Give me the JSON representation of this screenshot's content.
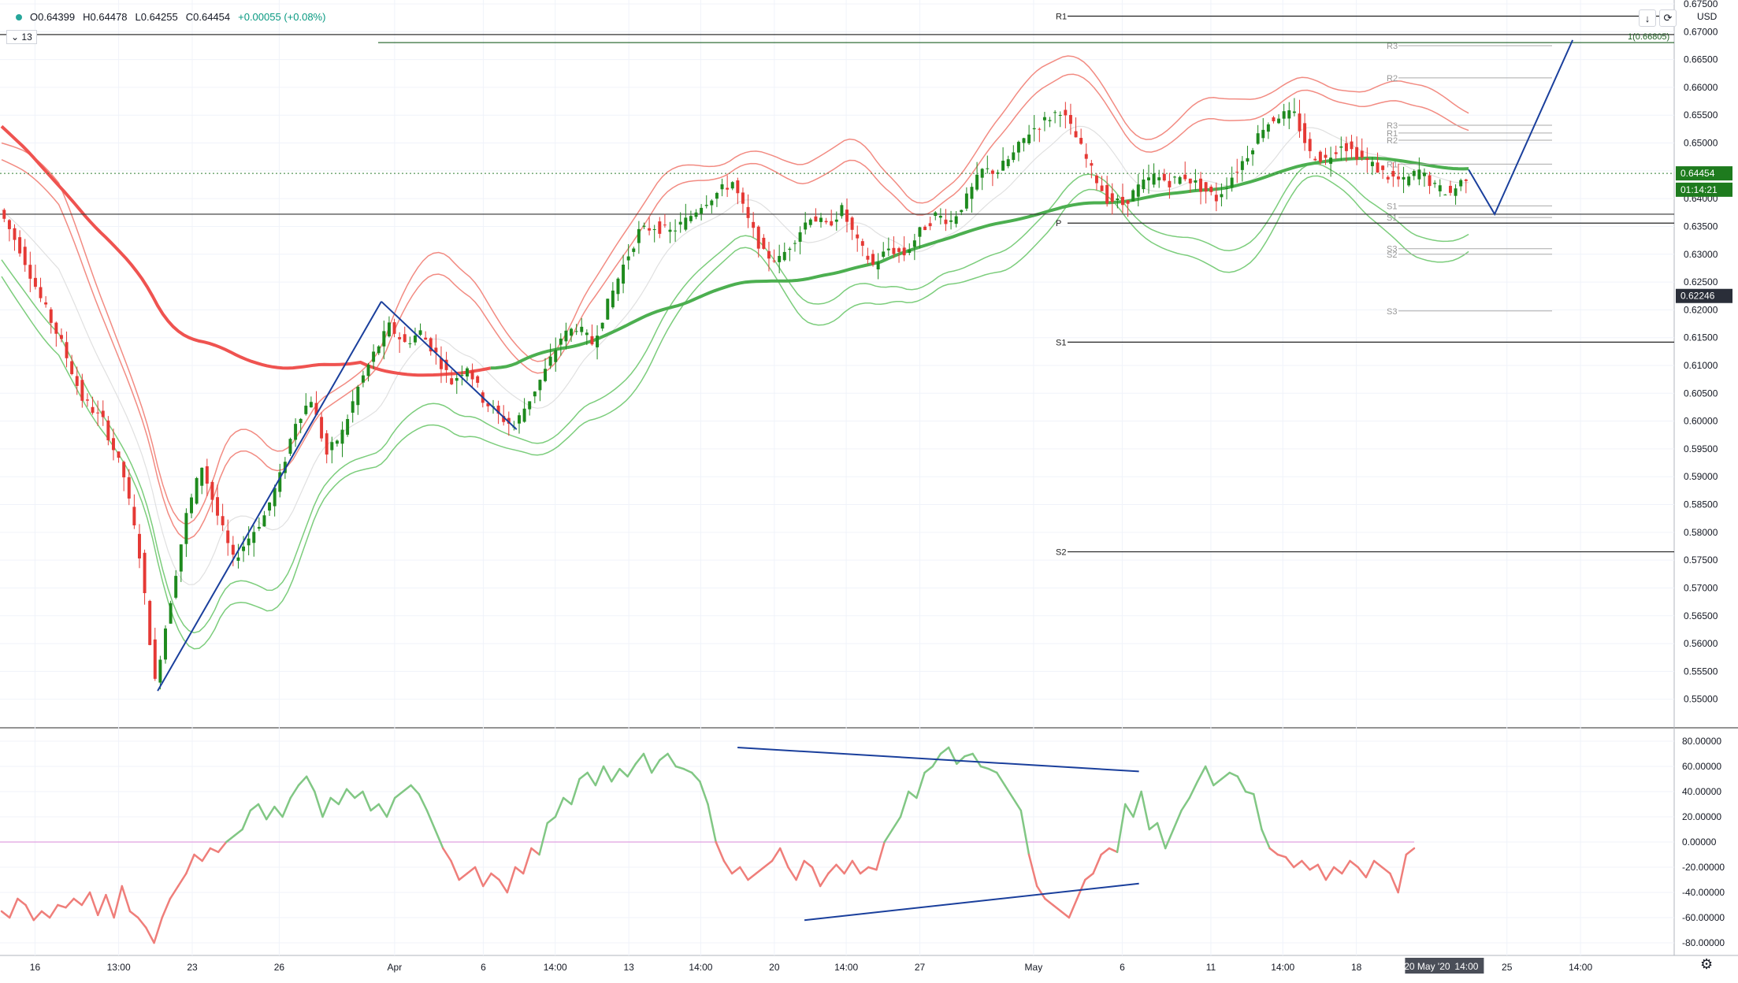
{
  "header": {
    "open": "O0.64399",
    "high": "H0.64478",
    "low": "L0.64255",
    "close": "C0.64454",
    "change": "+0.00055 (+0.08%)",
    "collapse_label": "13",
    "currency": "USD"
  },
  "chart_data": [
    {
      "type": "candlestick",
      "y_range": [
        0.545,
        0.675
      ],
      "y_ticks": [
        "0.67500",
        "0.67000",
        "0.66500",
        "0.66000",
        "0.65500",
        "0.65000",
        "0.64500",
        "0.64000",
        "0.63500",
        "0.63000",
        "0.62500",
        "0.62000",
        "0.61500",
        "0.61000",
        "0.60500",
        "0.60000",
        "0.59500",
        "0.59000",
        "0.58500",
        "0.58000",
        "0.57500",
        "0.57000",
        "0.56500",
        "0.56000",
        "0.55500",
        "0.55000"
      ],
      "x_ticks": [
        "16",
        "13:00",
        "23",
        "26",
        "Apr",
        "6",
        "14:00",
        "13",
        "14:00",
        "20",
        "14:00",
        "27",
        "May",
        "6",
        "11",
        "14:00",
        "18",
        "25",
        "14:00"
      ],
      "x_highlight_label": "20 May '20",
      "x_highlight_time": "14:00",
      "last_price": "0.64454",
      "countdown": "01:14:21",
      "crosshair_price": "0.62246",
      "fib_label": "1(0.66805)",
      "pivot_levels_weekly": [
        {
          "label": "R1",
          "value": 0.6728
        },
        {
          "label": "P",
          "value": 0.6356
        },
        {
          "label": "S1",
          "value": 0.6142
        },
        {
          "label": "S2",
          "value": 0.5765
        }
      ],
      "pivot_levels_daily": [
        {
          "label": "R3",
          "value": 0.6675
        },
        {
          "label": "R2",
          "value": 0.6617
        },
        {
          "label": "R3",
          "value": 0.6532
        },
        {
          "label": "R1",
          "value": 0.6518
        },
        {
          "label": "R2",
          "value": 0.6505
        },
        {
          "label": "R1",
          "value": 0.6462
        },
        {
          "label": "S1",
          "value": 0.6387
        },
        {
          "label": "S1",
          "value": 0.6366
        },
        {
          "label": "S3",
          "value": 0.631
        },
        {
          "label": "S2",
          "value": 0.63
        },
        {
          "label": "S3",
          "value": 0.6198
        }
      ],
      "horizontal_lines": [
        0.66805,
        0.6695,
        0.6372
      ],
      "price_path": [
        {
          "t": 0,
          "v": 0.638
        },
        {
          "t": 4,
          "v": 0.631
        },
        {
          "t": 8,
          "v": 0.622
        },
        {
          "t": 12,
          "v": 0.614
        },
        {
          "t": 16,
          "v": 0.604
        },
        {
          "t": 20,
          "v": 0.6
        },
        {
          "t": 24,
          "v": 0.59
        },
        {
          "t": 27,
          "v": 0.576
        },
        {
          "t": 30,
          "v": 0.553
        },
        {
          "t": 33,
          "v": 0.568
        },
        {
          "t": 36,
          "v": 0.583
        },
        {
          "t": 39,
          "v": 0.592
        },
        {
          "t": 42,
          "v": 0.583
        },
        {
          "t": 45,
          "v": 0.575
        },
        {
          "t": 48,
          "v": 0.579
        },
        {
          "t": 51,
          "v": 0.583
        },
        {
          "t": 54,
          "v": 0.59
        },
        {
          "t": 57,
          "v": 0.6
        },
        {
          "t": 60,
          "v": 0.604
        },
        {
          "t": 63,
          "v": 0.594
        },
        {
          "t": 66,
          "v": 0.598
        },
        {
          "t": 69,
          "v": 0.606
        },
        {
          "t": 72,
          "v": 0.612
        },
        {
          "t": 75,
          "v": 0.617
        },
        {
          "t": 78,
          "v": 0.614
        },
        {
          "t": 81,
          "v": 0.616
        },
        {
          "t": 84,
          "v": 0.612
        },
        {
          "t": 87,
          "v": 0.607
        },
        {
          "t": 90,
          "v": 0.61
        },
        {
          "t": 93,
          "v": 0.604
        },
        {
          "t": 96,
          "v": 0.601
        },
        {
          "t": 99,
          "v": 0.599
        },
        {
          "t": 102,
          "v": 0.604
        },
        {
          "t": 105,
          "v": 0.609
        },
        {
          "t": 108,
          "v": 0.615
        },
        {
          "t": 111,
          "v": 0.617
        },
        {
          "t": 114,
          "v": 0.614
        },
        {
          "t": 117,
          "v": 0.621
        },
        {
          "t": 120,
          "v": 0.628
        },
        {
          "t": 123,
          "v": 0.634
        },
        {
          "t": 126,
          "v": 0.635
        },
        {
          "t": 129,
          "v": 0.634
        },
        {
          "t": 132,
          "v": 0.636
        },
        {
          "t": 135,
          "v": 0.639
        },
        {
          "t": 138,
          "v": 0.641
        },
        {
          "t": 141,
          "v": 0.643
        },
        {
          "t": 144,
          "v": 0.636
        },
        {
          "t": 147,
          "v": 0.63
        },
        {
          "t": 150,
          "v": 0.629
        },
        {
          "t": 153,
          "v": 0.633
        },
        {
          "t": 156,
          "v": 0.637
        },
        {
          "t": 159,
          "v": 0.635
        },
        {
          "t": 162,
          "v": 0.638
        },
        {
          "t": 165,
          "v": 0.632
        },
        {
          "t": 168,
          "v": 0.628
        },
        {
          "t": 171,
          "v": 0.631
        },
        {
          "t": 174,
          "v": 0.63
        },
        {
          "t": 177,
          "v": 0.634
        },
        {
          "t": 180,
          "v": 0.637
        },
        {
          "t": 183,
          "v": 0.636
        },
        {
          "t": 186,
          "v": 0.64
        },
        {
          "t": 189,
          "v": 0.645
        },
        {
          "t": 192,
          "v": 0.645
        },
        {
          "t": 195,
          "v": 0.648
        },
        {
          "t": 198,
          "v": 0.652
        },
        {
          "t": 201,
          "v": 0.654
        },
        {
          "t": 204,
          "v": 0.656
        },
        {
          "t": 207,
          "v": 0.651
        },
        {
          "t": 210,
          "v": 0.645
        },
        {
          "t": 213,
          "v": 0.64
        },
        {
          "t": 216,
          "v": 0.639
        },
        {
          "t": 219,
          "v": 0.642
        },
        {
          "t": 222,
          "v": 0.644
        },
        {
          "t": 225,
          "v": 0.643
        },
        {
          "t": 228,
          "v": 0.644
        },
        {
          "t": 231,
          "v": 0.642
        },
        {
          "t": 234,
          "v": 0.64
        },
        {
          "t": 237,
          "v": 0.644
        },
        {
          "t": 240,
          "v": 0.648
        },
        {
          "t": 243,
          "v": 0.653
        },
        {
          "t": 246,
          "v": 0.655
        },
        {
          "t": 249,
          "v": 0.655
        },
        {
          "t": 252,
          "v": 0.648
        },
        {
          "t": 255,
          "v": 0.647
        },
        {
          "t": 258,
          "v": 0.65
        },
        {
          "t": 261,
          "v": 0.648
        },
        {
          "t": 264,
          "v": 0.646
        },
        {
          "t": 267,
          "v": 0.644
        },
        {
          "t": 270,
          "v": 0.643
        },
        {
          "t": 273,
          "v": 0.645
        },
        {
          "t": 276,
          "v": 0.642
        },
        {
          "t": 279,
          "v": 0.641
        },
        {
          "t": 282,
          "v": 0.644
        }
      ],
      "projection": [
        {
          "t": 282,
          "v": 0.6452
        },
        {
          "t": 287,
          "v": 0.6372
        },
        {
          "t": 302,
          "v": 0.6685
        }
      ]
    },
    {
      "type": "line",
      "title": "",
      "y_range": [
        -90,
        90
      ],
      "y_ticks": [
        "80.00000",
        "60.00000",
        "40.00000",
        "20.00000",
        "0.00000",
        "-20.00000",
        "-40.00000",
        "-60.00000",
        "-80.00000"
      ],
      "values": [
        -55,
        -60,
        -45,
        -50,
        -62,
        -55,
        -60,
        -50,
        -52,
        -45,
        -50,
        -40,
        -58,
        -42,
        -60,
        -35,
        -55,
        -60,
        -68,
        -80,
        -60,
        -45,
        -35,
        -25,
        -10,
        -15,
        -5,
        -8,
        0,
        5,
        10,
        25,
        30,
        18,
        28,
        20,
        35,
        45,
        52,
        40,
        20,
        35,
        30,
        42,
        35,
        40,
        25,
        30,
        20,
        35,
        40,
        45,
        38,
        25,
        10,
        -5,
        -15,
        -30,
        -25,
        -20,
        -35,
        -25,
        -30,
        -40,
        -20,
        -25,
        -5,
        -10,
        15,
        20,
        35,
        30,
        50,
        55,
        45,
        60,
        48,
        58,
        52,
        62,
        70,
        55,
        65,
        70,
        60,
        58,
        55,
        48,
        30,
        0,
        -15,
        -25,
        -20,
        -30,
        -25,
        -20,
        -15,
        -5,
        -20,
        -30,
        -15,
        -20,
        -35,
        -25,
        -18,
        -25,
        -15,
        -25,
        -20,
        -22,
        0,
        10,
        20,
        40,
        35,
        55,
        60,
        70,
        75,
        62,
        68,
        70,
        60,
        58,
        55,
        45,
        35,
        25,
        -10,
        -35,
        -45,
        -50,
        -55,
        -60,
        -45,
        -30,
        -25,
        -10,
        -5,
        -8,
        30,
        20,
        40,
        10,
        15,
        -5,
        10,
        25,
        35,
        48,
        60,
        45,
        50,
        55,
        52,
        40,
        38,
        10,
        -5,
        -10,
        -12,
        -20,
        -15,
        -22,
        -18,
        -30,
        -20,
        -25,
        -15,
        -20,
        -28,
        -15,
        -20,
        -25,
        -40,
        -10,
        -5
      ],
      "trendlines": [
        {
          "from": [
            0.44,
            75
          ],
          "to": [
            0.68,
            56
          ]
        },
        {
          "from": [
            0.48,
            -62
          ],
          "to": [
            0.68,
            -33
          ]
        }
      ]
    }
  ],
  "colors": {
    "up": "#1e8a1e",
    "down": "#e53935",
    "band_red": "#f28b82",
    "band_green": "#7ccd7c",
    "ma_red": "#ef5350",
    "ma_green": "#4caf50",
    "trend": "#1a3f9c",
    "osc_up": "#81c784",
    "osc_down": "#ef7e7a"
  },
  "toolbar": {
    "download_icon": "arrow-down-icon",
    "refresh_icon": "refresh-icon",
    "settings_icon": "gear-icon"
  }
}
